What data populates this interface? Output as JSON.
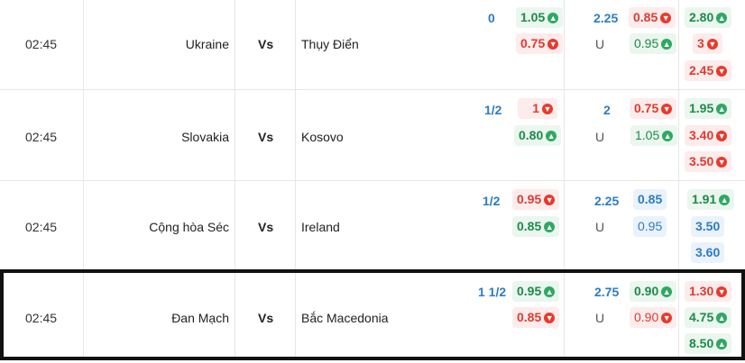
{
  "vs_label": "Vs",
  "under_label": "U",
  "matches": [
    {
      "time": "02:45",
      "home": "Ukraine",
      "away": "Thụy Điển",
      "handicap": "0",
      "hcap_home": "1.05",
      "hcap_away": "0.75",
      "ou_line": "2.25",
      "ou_over": "0.85",
      "ou_under": "0.95",
      "x1": "2.80",
      "x2": "3",
      "x3": "2.45"
    },
    {
      "time": "02:45",
      "home": "Slovakia",
      "away": "Kosovo",
      "handicap": "1/2",
      "hcap_home": "1",
      "hcap_away": "0.80",
      "ou_line": "2",
      "ou_over": "0.75",
      "ou_under": "1.05",
      "x1": "1.95",
      "x2": "3.40",
      "x3": "3.50"
    },
    {
      "time": "02:45",
      "home": "Cộng hòa Séc",
      "away": "Ireland",
      "handicap": "1/2",
      "hcap_home": "0.95",
      "hcap_away": "0.85",
      "ou_line": "2.25",
      "ou_over": "0.85",
      "ou_under": "0.95",
      "x1": "1.91",
      "x2": "3.50",
      "x3": "3.60"
    },
    {
      "time": "02:45",
      "home": "Đan Mạch",
      "away": "Bắc Macedonia",
      "handicap": "1 1/2",
      "hcap_home": "0.95",
      "hcap_away": "0.85",
      "ou_line": "2.75",
      "ou_over": "0.90",
      "ou_under": "0.90",
      "x1": "1.30",
      "x2": "4.75",
      "x3": "8.50"
    }
  ],
  "colors": {
    "up": "#1f8a4c",
    "down": "#e03a2f",
    "flat": "#2d7cc0",
    "highlight_border": "#111111"
  },
  "icons": {
    "up": "arrow-up-icon",
    "down": "arrow-down-icon"
  }
}
